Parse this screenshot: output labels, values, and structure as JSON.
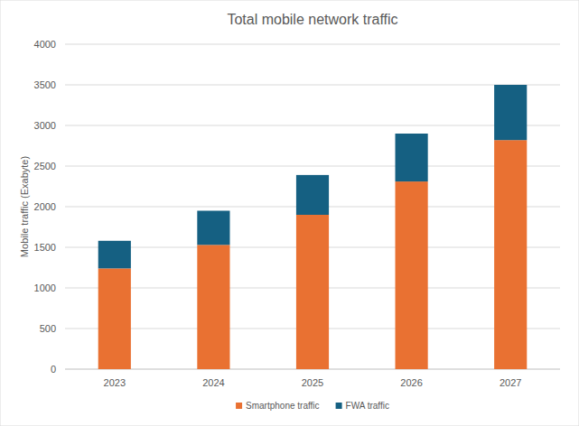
{
  "chart_data": {
    "type": "bar",
    "title": "Total mobile network traffic",
    "y_label": "Mobile traffic (Exabyte)",
    "categories": [
      "2023",
      "2024",
      "2025",
      "2026",
      "2027"
    ],
    "series": [
      {
        "name": "Smartphone traffic",
        "color": "#e97132",
        "values": [
          1240,
          1530,
          1900,
          2310,
          2820
        ]
      },
      {
        "name": "FWA traffic",
        "color": "#156082",
        "values": [
          340,
          420,
          490,
          590,
          680
        ]
      }
    ],
    "stacked": true,
    "grid": true,
    "legend": "bottom",
    "ylim": [
      0,
      4000
    ],
    "yticks": [
      0,
      500,
      1000,
      1500,
      2000,
      2500,
      3000,
      3500,
      4000
    ]
  }
}
